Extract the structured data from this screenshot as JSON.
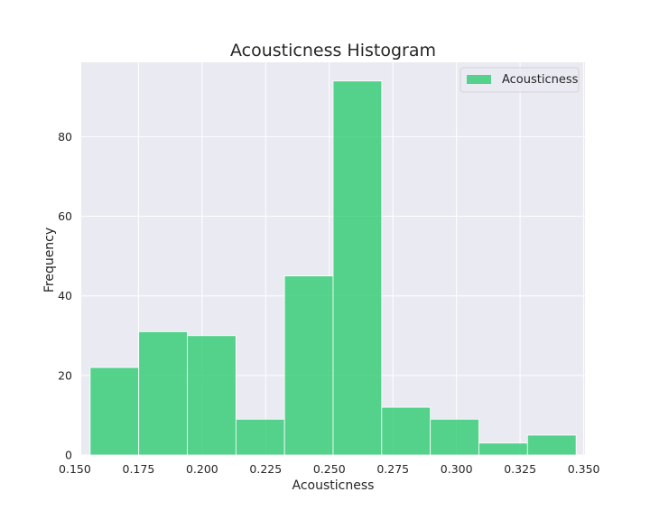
{
  "chart_data": {
    "type": "bar",
    "title": "Acousticness Histogram",
    "xlabel": "Acousticness",
    "ylabel": "Frequency",
    "bin_edges": [
      0.156,
      0.1751,
      0.1942,
      0.2133,
      0.2324,
      0.2515,
      0.2706,
      0.2897,
      0.3088,
      0.3279,
      0.347
    ],
    "values": [
      22,
      31,
      30,
      9,
      45,
      94,
      12,
      9,
      3,
      5
    ],
    "xlim": [
      0.1525,
      0.3505
    ],
    "ylim": [
      0,
      98.7
    ],
    "x_ticks": [
      0.15,
      0.175,
      0.2,
      0.225,
      0.25,
      0.275,
      0.3,
      0.325,
      0.35
    ],
    "x_tick_labels": [
      "0.150",
      "0.175",
      "0.200",
      "0.225",
      "0.250",
      "0.275",
      "0.300",
      "0.325",
      "0.350"
    ],
    "y_ticks": [
      0,
      20,
      40,
      60,
      80
    ],
    "y_tick_labels": [
      "0",
      "20",
      "40",
      "60",
      "80"
    ],
    "grid": true,
    "legend": {
      "position": "top-right",
      "entries": [
        {
          "name": "Acousticness",
          "color": "#2ecc71"
        }
      ]
    },
    "colors": {
      "bar": "#2ecc71",
      "background": "#eaeaf2",
      "grid": "#ffffff"
    }
  }
}
